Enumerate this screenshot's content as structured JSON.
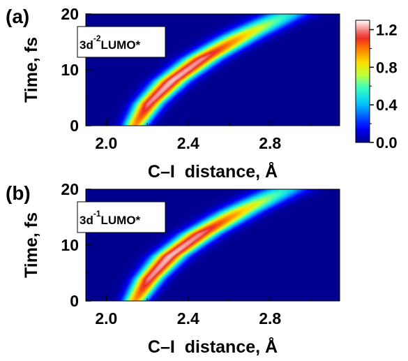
{
  "chart_data": [
    {
      "panel_label": "(a)",
      "type": "heatmap",
      "annotation": {
        "base": "3d",
        "superscript": "-2",
        "suffix": "LUMO*"
      },
      "xlabel": "C–I  distance, Å",
      "ylabel": "Time, fs",
      "xlim": [
        1.9,
        3.14
      ],
      "ylim": [
        0,
        20
      ],
      "xticks": [
        "2.0",
        "2.4",
        "2.8"
      ],
      "xtick_values": [
        2.0,
        2.4,
        2.8
      ],
      "yticks": [
        "0",
        "10",
        "20"
      ],
      "ytick_values": [
        0,
        10,
        20
      ],
      "ridge": {
        "time_fs": [
          0,
          4,
          8,
          12,
          16,
          20
        ],
        "center_distance": [
          2.14,
          2.21,
          2.32,
          2.47,
          2.66,
          2.88
        ],
        "width": [
          0.04,
          0.047,
          0.055,
          0.062,
          0.07,
          0.08
        ],
        "peak_intensity": [
          0.95,
          1.2,
          1.25,
          1.2,
          0.9,
          0.5
        ]
      }
    },
    {
      "panel_label": "(b)",
      "type": "heatmap",
      "annotation": {
        "base": "3d",
        "superscript": "-1",
        "suffix": "LUMO*"
      },
      "xlabel": "C–I  distance, Å",
      "ylabel": "Time, fs",
      "xlim": [
        1.9,
        3.14
      ],
      "ylim": [
        0,
        20
      ],
      "xticks": [
        "2.0",
        "2.4",
        "2.8"
      ],
      "xtick_values": [
        2.0,
        2.4,
        2.8
      ],
      "yticks": [
        "0",
        "10",
        "20"
      ],
      "ytick_values": [
        0,
        10,
        20
      ],
      "ridge": {
        "time_fs": [
          0,
          4,
          8,
          12,
          16,
          20
        ],
        "center_distance": [
          2.14,
          2.21,
          2.31,
          2.46,
          2.65,
          2.87
        ],
        "width": [
          0.04,
          0.047,
          0.055,
          0.062,
          0.07,
          0.08
        ],
        "peak_intensity": [
          0.95,
          1.2,
          1.25,
          1.2,
          0.9,
          0.5
        ]
      }
    }
  ],
  "colorbar": {
    "min": 0,
    "max": 1.3,
    "ticks": [
      "0.0",
      "0.4",
      "0.8",
      "1.2"
    ],
    "tick_values": [
      0.0,
      0.4,
      0.8,
      1.2
    ],
    "colormap": "jet-like (dark blue to white)"
  }
}
